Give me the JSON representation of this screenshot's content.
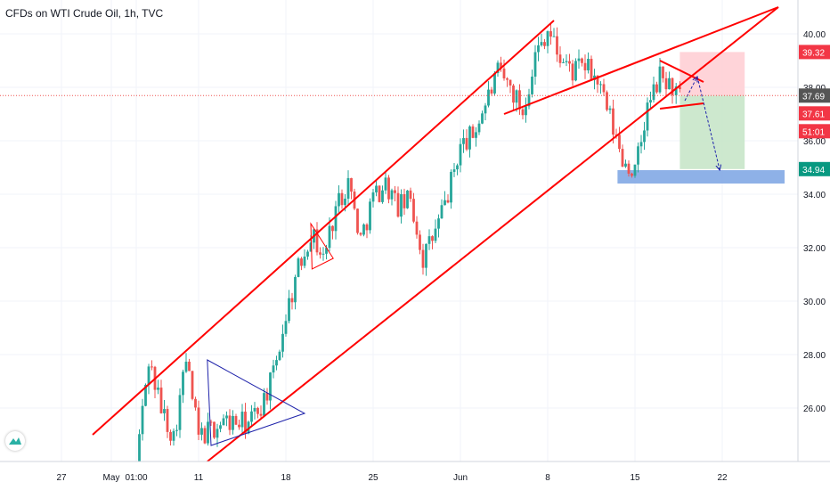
{
  "header": {
    "title": "CFDs on WTI Crude Oil, 1h, TVC"
  },
  "colors": {
    "up": "#26a69a",
    "down": "#ef5350",
    "channel": "#ff0000",
    "triangle": "#1e22aa",
    "target_zone": "#c8e6c9",
    "stop_zone": "#ffcdd2",
    "support_zone": "#82a8e4",
    "price_line": "#ef5350"
  },
  "chart_data": {
    "type": "candlestick",
    "ylim": [
      24,
      41
    ],
    "yticks": [
      "26.00",
      "28.00",
      "30.00",
      "32.00",
      "34.00",
      "36.00",
      "38.00",
      "40.00"
    ],
    "xticks": [
      "27",
      "May",
      "01:00",
      "11",
      "18",
      "25",
      "Jun",
      "8",
      "15",
      "22"
    ],
    "x_positions_days": [
      -4,
      0,
      2,
      7,
      14,
      21,
      28,
      35,
      42,
      49
    ],
    "price_tags": [
      {
        "label": "39.32",
        "value": 39.32,
        "color": "#f23645"
      },
      {
        "label": "37.69",
        "value": 37.69,
        "color": "#555555"
      },
      {
        "label": "37.61",
        "value": 37.61,
        "color": "#f23645"
      },
      {
        "label": "51:01",
        "value": 36.9,
        "color": "#f23645"
      },
      {
        "label": "34.94",
        "value": 34.94,
        "color": "#089981"
      }
    ],
    "path": [
      [
        2,
        24.0
      ],
      [
        3,
        27.8
      ],
      [
        4,
        26.0
      ],
      [
        5,
        24.9
      ],
      [
        6,
        27.8
      ],
      [
        7,
        24.9
      ],
      [
        9,
        25.5
      ],
      [
        11,
        25.4
      ],
      [
        12,
        26.1
      ],
      [
        13,
        27.2
      ],
      [
        14,
        29.5
      ],
      [
        15,
        31.2
      ],
      [
        16,
        32.6
      ],
      [
        17,
        31.6
      ],
      [
        18,
        33.5
      ],
      [
        19,
        34.5
      ],
      [
        20,
        32.3
      ],
      [
        21,
        33.9
      ],
      [
        22,
        34.4
      ],
      [
        23,
        33.5
      ],
      [
        24,
        33.8
      ],
      [
        25,
        31.6
      ],
      [
        26,
        32.6
      ],
      [
        27,
        34.0
      ],
      [
        28,
        35.8
      ],
      [
        29,
        36.2
      ],
      [
        30,
        37.4
      ],
      [
        31,
        38.5
      ],
      [
        32,
        38.0
      ],
      [
        33,
        37.1
      ],
      [
        34,
        39.2
      ],
      [
        35,
        40.2
      ],
      [
        36,
        39.1
      ],
      [
        37,
        38.6
      ],
      [
        38,
        38.8
      ],
      [
        39,
        38.2
      ],
      [
        40,
        36.8
      ],
      [
        41,
        35.3
      ],
      [
        42,
        34.8
      ],
      [
        43,
        37.2
      ],
      [
        44,
        38.4
      ],
      [
        45,
        38.0
      ],
      [
        45.6,
        37.6
      ]
    ],
    "annotations": {
      "channel_upper": [
        [
          -1.5,
          25.0
        ],
        [
          35.5,
          40.5
        ]
      ],
      "channel_upper_ext": [
        [
          31.5,
          37.0
        ],
        [
          53.5,
          41.0
        ]
      ],
      "channel_lower": [
        [
          7.7,
          24.0
        ],
        [
          53.5,
          41.0
        ]
      ],
      "big_triangle": [
        [
          7.7,
          27.8
        ],
        [
          15.5,
          25.8
        ],
        [
          8.0,
          24.6
        ]
      ],
      "small_triangle": [
        [
          16.0,
          32.9
        ],
        [
          17.8,
          31.6
        ],
        [
          16.1,
          31.2
        ]
      ],
      "recent_triangle_top": [
        [
          44.0,
          39.0
        ],
        [
          47.5,
          38.2
        ]
      ],
      "recent_triangle_bottom": [
        [
          44.0,
          37.2
        ],
        [
          47.5,
          37.4
        ]
      ],
      "forecast_up": [
        [
          46.0,
          37.5
        ],
        [
          47.0,
          38.4
        ]
      ],
      "forecast_down": [
        [
          47.0,
          38.4
        ],
        [
          48.8,
          34.9
        ]
      ],
      "stop_zone": {
        "x0": 45.6,
        "x1": 50.8,
        "y0": 37.69,
        "y1": 39.32
      },
      "target_zone": {
        "x0": 45.6,
        "x1": 50.8,
        "y0": 34.94,
        "y1": 37.69
      },
      "support_zone": {
        "x0": 40.6,
        "x1": 54.0,
        "y0": 34.4,
        "y1": 34.9
      },
      "current_price": 37.69
    }
  }
}
